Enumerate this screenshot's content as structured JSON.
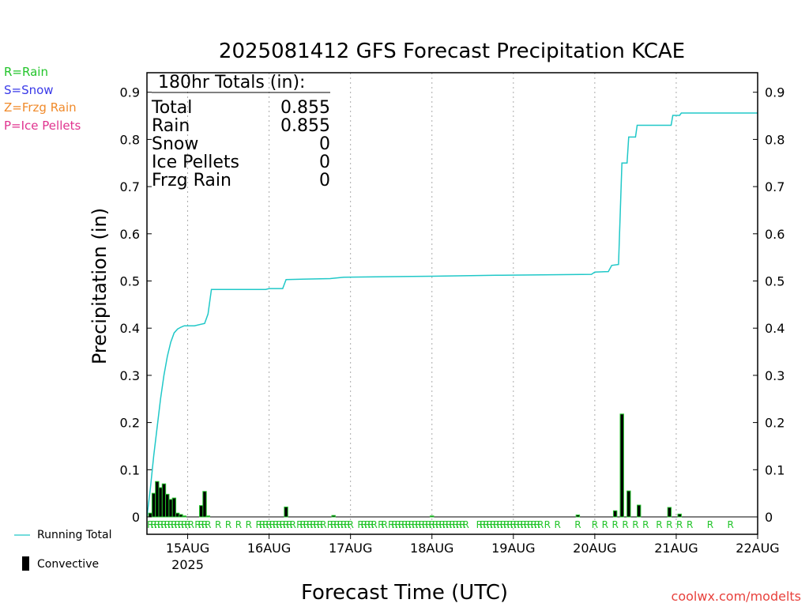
{
  "page": {
    "credit": "coolwx.com/modelts"
  },
  "legend_left": {
    "rain": "R=Rain",
    "snow": "S=Snow",
    "frzg_rain": "Z=Frzg Rain",
    "ice_pellets": "P=Ice Pellets"
  },
  "colors": {
    "rain": "#22c42a",
    "snow": "#3a3ae8",
    "frzg_rain": "#f08a2a",
    "ice_pellets": "#e0338f",
    "running_total": "#20c8c8",
    "convective_fill": "#000000",
    "convective_edge": "#22c42a",
    "grid": "#aaaaaa"
  },
  "totals_box": {
    "title": "180hr Totals (in):",
    "rows": [
      {
        "label": "Total",
        "value": "0.855"
      },
      {
        "label": "Rain",
        "value": "0.855"
      },
      {
        "label": "Snow",
        "value": "0"
      },
      {
        "label": "Ice Pellets",
        "value": "0"
      },
      {
        "label": "Frzg Rain",
        "value": "0"
      }
    ]
  },
  "series_legend": {
    "running_total": "Running Total",
    "convective": "Convective"
  },
  "chart_data": {
    "type": "bar",
    "title": "2025081412 GFS Forecast Precipitation KCAE",
    "xlabel": "Forecast Time (UTC)",
    "ylabel": "Precipitation (in)",
    "ylim": [
      0,
      0.9
    ],
    "y_ticks": [
      0,
      0.1,
      0.2,
      0.3,
      0.4,
      0.5,
      0.6,
      0.7,
      0.8,
      0.9
    ],
    "y_tick_labels": [
      "0",
      "0.1",
      "0.2",
      "0.3",
      "0.4",
      "0.5",
      "0.6",
      "0.7",
      "0.8",
      "0.9"
    ],
    "xlim_hours": [
      12,
      192
    ],
    "x_ticks": [
      {
        "hour": 24,
        "label": "15AUG",
        "sublabel": "2025"
      },
      {
        "hour": 48,
        "label": "16AUG"
      },
      {
        "hour": 72,
        "label": "17AUG"
      },
      {
        "hour": 96,
        "label": "18AUG"
      },
      {
        "hour": 120,
        "label": "19AUG"
      },
      {
        "hour": 144,
        "label": "20AUG"
      },
      {
        "hour": 168,
        "label": "21AUG"
      },
      {
        "hour": 192,
        "label": "22AUG"
      }
    ],
    "grid": "vertical dotted",
    "series": [
      {
        "name": "Running Total",
        "type": "line",
        "points": [
          [
            12,
            0
          ],
          [
            13,
            0.06
          ],
          [
            14,
            0.13
          ],
          [
            15,
            0.19
          ],
          [
            16,
            0.25
          ],
          [
            17,
            0.3
          ],
          [
            18,
            0.34
          ],
          [
            19,
            0.37
          ],
          [
            20,
            0.39
          ],
          [
            21,
            0.398
          ],
          [
            22,
            0.402
          ],
          [
            23,
            0.405
          ],
          [
            26,
            0.405
          ],
          [
            29,
            0.41
          ],
          [
            30,
            0.43
          ],
          [
            31,
            0.482
          ],
          [
            47,
            0.482
          ],
          [
            48,
            0.484
          ],
          [
            52,
            0.484
          ],
          [
            53,
            0.503
          ],
          [
            66,
            0.505
          ],
          [
            70,
            0.508
          ],
          [
            82,
            0.509
          ],
          [
            96,
            0.51
          ],
          [
            115,
            0.512
          ],
          [
            143,
            0.514
          ],
          [
            144,
            0.519
          ],
          [
            148,
            0.52
          ],
          [
            149,
            0.533
          ],
          [
            151,
            0.535
          ],
          [
            152,
            0.75
          ],
          [
            153.5,
            0.75
          ],
          [
            154,
            0.805
          ],
          [
            156,
            0.805
          ],
          [
            156.5,
            0.83
          ],
          [
            166.5,
            0.83
          ],
          [
            167,
            0.851
          ],
          [
            169,
            0.851
          ],
          [
            169.5,
            0.856
          ],
          [
            192,
            0.856
          ]
        ]
      },
      {
        "name": "Convective",
        "type": "bar",
        "points": [
          [
            13,
            0.008
          ],
          [
            14,
            0.05
          ],
          [
            15,
            0.075
          ],
          [
            16,
            0.062
          ],
          [
            17,
            0.07
          ],
          [
            18,
            0.048
          ],
          [
            19,
            0.037
          ],
          [
            20,
            0.04
          ],
          [
            21,
            0.008
          ],
          [
            22,
            0.005
          ],
          [
            23,
            0.002
          ],
          [
            28,
            0.024
          ],
          [
            29,
            0.054
          ],
          [
            30,
            0.002
          ],
          [
            53,
            0.021
          ],
          [
            67,
            0.003
          ],
          [
            96,
            0.002
          ],
          [
            139,
            0.004
          ],
          [
            150,
            0.013
          ],
          [
            152,
            0.218
          ],
          [
            154,
            0.055
          ],
          [
            157,
            0.025
          ],
          [
            166,
            0.02
          ],
          [
            169,
            0.006
          ]
        ]
      }
    ],
    "ptype_marks": {
      "symbol": "R",
      "hours": [
        13,
        14,
        15,
        16,
        17,
        18,
        19,
        20,
        21,
        22,
        23,
        24,
        25,
        27,
        28,
        29,
        30,
        33,
        36,
        39,
        42,
        45,
        46,
        47,
        48,
        49,
        50,
        51,
        52,
        53,
        54,
        55,
        57,
        58,
        59,
        60,
        61,
        62,
        63,
        64,
        66,
        67,
        68,
        69,
        70,
        71,
        72,
        75,
        76,
        77,
        78,
        79,
        81,
        82,
        84,
        85,
        86,
        87,
        88,
        89,
        90,
        91,
        92,
        93,
        94,
        95,
        96,
        97,
        98,
        99,
        100,
        101,
        102,
        103,
        104,
        105,
        106,
        110,
        111,
        112,
        113,
        114,
        115,
        116,
        117,
        118,
        119,
        120,
        121,
        122,
        123,
        124,
        125,
        126,
        127,
        128,
        130,
        133,
        139,
        144,
        147,
        150,
        153,
        156,
        159,
        163,
        166,
        169,
        172,
        178,
        184
      ]
    }
  }
}
